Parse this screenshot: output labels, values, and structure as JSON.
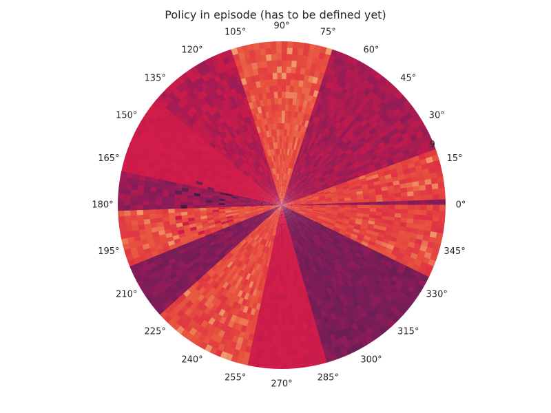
{
  "chart_data": {
    "type": "heatmap",
    "projection": "polar",
    "title": "Policy in episode (has to be defined yet)",
    "angle_tick_labels": [
      "0°",
      "15°",
      "30°",
      "45°",
      "60°",
      "75°",
      "90°",
      "105°",
      "120°",
      "135°",
      "150°",
      "165°",
      "180°",
      "195°",
      "210°",
      "225°",
      "240°",
      "255°",
      "270°",
      "285°",
      "300°",
      "315°",
      "330°",
      "345°"
    ],
    "angle_ticks_deg": [
      0,
      15,
      30,
      45,
      60,
      75,
      90,
      105,
      120,
      135,
      150,
      165,
      180,
      195,
      210,
      225,
      240,
      255,
      270,
      285,
      300,
      315,
      330,
      345
    ],
    "radial_tick_label": "9",
    "radial_tick_angle_deg": 22.5,
    "grid": false,
    "colormap": "rocket",
    "colors": {
      "dark": "#2a1a3a",
      "purple": "#5a1f50",
      "magenta": "#851c5a",
      "crimson": "#c91b4a",
      "red": "#d81f47",
      "orange": "#e8523e",
      "light": "#f09a6c"
    },
    "sectors": [
      {
        "from": 0,
        "to": 3,
        "level": 0.35
      },
      {
        "from": 3,
        "to": 20,
        "level": 0.78
      },
      {
        "from": 20,
        "to": 72,
        "level": 0.42
      },
      {
        "from": 72,
        "to": 108,
        "level": 0.82
      },
      {
        "from": 108,
        "to": 140,
        "level": 0.45
      },
      {
        "from": 140,
        "to": 168,
        "level": 0.55
      },
      {
        "from": 168,
        "to": 182,
        "level": 0.38
      },
      {
        "from": 182,
        "to": 203,
        "level": 0.8
      },
      {
        "from": 203,
        "to": 222,
        "level": 0.32
      },
      {
        "from": 222,
        "to": 258,
        "level": 0.8
      },
      {
        "from": 258,
        "to": 287,
        "level": 0.55
      },
      {
        "from": 287,
        "to": 335,
        "level": 0.3
      },
      {
        "from": 335,
        "to": 360,
        "level": 0.78
      }
    ]
  }
}
